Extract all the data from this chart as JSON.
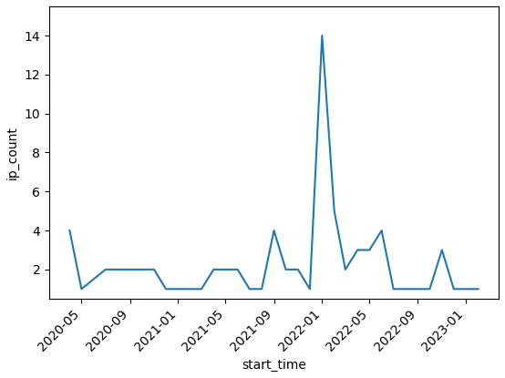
{
  "dates": [
    "2020-04-01",
    "2020-05-01",
    "2020-07-01",
    "2020-08-01",
    "2020-09-01",
    "2020-10-01",
    "2020-11-01",
    "2020-12-01",
    "2021-01-01",
    "2021-02-01",
    "2021-03-01",
    "2021-04-01",
    "2021-05-01",
    "2021-06-01",
    "2021-07-01",
    "2021-08-01",
    "2021-09-01",
    "2021-10-01",
    "2021-11-01",
    "2021-12-01",
    "2022-01-01",
    "2022-02-01",
    "2022-03-01",
    "2022-04-01",
    "2022-05-01",
    "2022-06-01",
    "2022-07-01",
    "2022-08-01",
    "2022-09-01",
    "2022-10-01",
    "2022-11-01",
    "2022-12-01",
    "2023-01-01",
    "2023-02-01"
  ],
  "values": [
    4,
    1,
    2,
    2,
    2,
    2,
    2,
    1,
    1,
    1,
    1,
    2,
    2,
    2,
    1,
    1,
    4,
    2,
    2,
    1,
    14,
    5,
    2,
    3,
    3,
    4,
    1,
    1,
    1,
    1,
    3,
    1,
    1,
    1
  ],
  "line_color": "#1f77b4",
  "xlabel": "start_time",
  "ylabel": "ip_count",
  "xtick_labels": [
    "2020-05",
    "2020-09",
    "2021-01",
    "2021-05",
    "2021-09",
    "2022-01",
    "2022-05",
    "2022-09",
    "2023-01"
  ],
  "xtick_dates": [
    "2020-05-01",
    "2020-09-01",
    "2021-01-01",
    "2021-05-01",
    "2021-09-01",
    "2022-01-01",
    "2022-05-01",
    "2022-09-01",
    "2023-01-01"
  ],
  "yticks": [
    2,
    4,
    6,
    8,
    10,
    12,
    14
  ],
  "ylim": [
    0.5,
    15.5
  ],
  "figsize": [
    5.54,
    4.15
  ],
  "dpi": 100
}
